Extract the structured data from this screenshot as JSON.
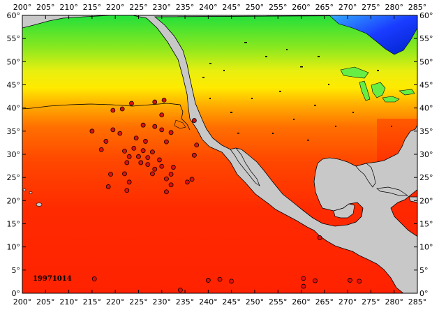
{
  "map": {
    "date_stamp": "19971014",
    "lon_range": [
      200,
      285
    ],
    "lat_range": [
      0,
      60
    ],
    "x_ticks": [
      "200°",
      "205°",
      "210°",
      "215°",
      "220°",
      "225°",
      "230°",
      "235°",
      "240°",
      "245°",
      "250°",
      "255°",
      "260°",
      "265°",
      "270°",
      "275°",
      "280°",
      "285°"
    ],
    "y_ticks": [
      "0°",
      "5°",
      "10°",
      "15°",
      "20°",
      "25°",
      "30°",
      "35°",
      "40°",
      "45°",
      "50°",
      "55°",
      "60°"
    ],
    "colors": {
      "land": "#c8c8c8",
      "ocean_warm": "#ff2a00",
      "ocean_mid": "#ff9a00",
      "ocean_cool": "#ffff00",
      "ocean_cold": "#33ee33",
      "lakes": "#66ee44",
      "marker": "#dd1111",
      "arctic_blue": "#1a3cff"
    },
    "markers": [
      [
        223.5,
        41
      ],
      [
        230.5,
        41.7
      ],
      [
        228.5,
        41.3
      ],
      [
        219.5,
        39.5
      ],
      [
        221.5,
        39.8
      ],
      [
        230,
        38.5
      ],
      [
        237,
        37.3
      ],
      [
        226,
        36.3
      ],
      [
        228.5,
        36
      ],
      [
        215,
        35
      ],
      [
        219.5,
        35.3
      ],
      [
        230,
        35.3
      ],
      [
        221,
        34.5
      ],
      [
        232,
        34.7
      ],
      [
        224.5,
        33.5
      ],
      [
        218,
        32.8
      ],
      [
        226.5,
        32.8
      ],
      [
        237.5,
        32
      ],
      [
        231,
        32.7
      ],
      [
        217,
        31
      ],
      [
        222,
        30.7
      ],
      [
        224,
        31.3
      ],
      [
        226,
        30.8
      ],
      [
        228,
        30.5
      ],
      [
        237,
        29.8
      ],
      [
        223,
        29.5
      ],
      [
        225,
        29.5
      ],
      [
        227,
        29.3
      ],
      [
        229.5,
        28.8
      ],
      [
        222.5,
        28.2
      ],
      [
        225.5,
        28.2
      ],
      [
        227,
        27.8
      ],
      [
        230,
        27.4
      ],
      [
        232.5,
        27.2
      ],
      [
        228.5,
        26.8
      ],
      [
        219,
        25.7
      ],
      [
        222,
        25.8
      ],
      [
        228,
        25.8
      ],
      [
        232,
        25.7
      ],
      [
        231,
        24.7
      ],
      [
        236.5,
        24.6
      ],
      [
        235.5,
        24
      ],
      [
        223,
        24
      ],
      [
        232,
        23.4
      ],
      [
        218.5,
        23
      ],
      [
        222.5,
        22.2
      ],
      [
        231,
        21.9
      ],
      [
        264,
        12
      ],
      [
        215.5,
        3.1
      ],
      [
        240,
        2.8
      ],
      [
        242.5,
        3
      ],
      [
        245,
        2.6
      ],
      [
        260.5,
        3.2
      ],
      [
        263,
        2.7
      ],
      [
        270.5,
        2.8
      ],
      [
        272.5,
        2.6
      ],
      [
        234,
        0.7
      ],
      [
        260.5,
        1.5
      ]
    ]
  }
}
